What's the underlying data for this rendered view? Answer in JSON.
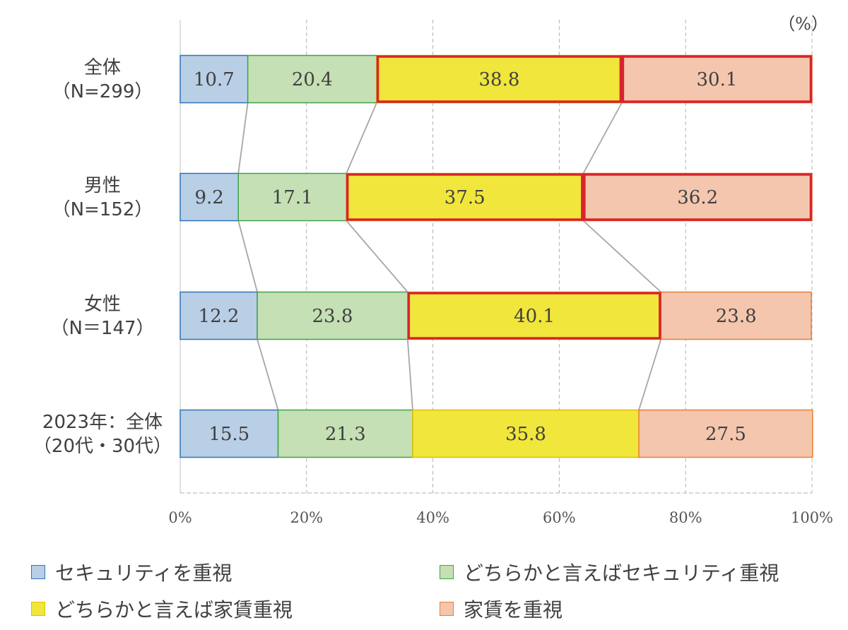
{
  "unit_label": "（%）",
  "legend": [
    {
      "label": "セキュリティを重視",
      "color": "#b9cfe6",
      "border": "#2e75b6"
    },
    {
      "label": "どちらかと言えばセキュリティ重視",
      "color": "#c5e0b4",
      "border": "#3fa34d"
    },
    {
      "label": "どちらかと言えば家賃重視",
      "color": "#f0e63c",
      "border": "#e0c000"
    },
    {
      "label": "家賃を重視",
      "color": "#f4c6ae",
      "border": "#ed7d31"
    }
  ],
  "chart_data": {
    "type": "bar",
    "orientation": "horizontal",
    "stacked": true,
    "percent": true,
    "categories": [
      [
        "全体",
        "（N=299）"
      ],
      [
        "男性",
        "（N=152）"
      ],
      [
        "女性",
        "（N＝147）"
      ],
      [
        "2023年：全体",
        "（20代・30代）"
      ]
    ],
    "series": [
      {
        "name": "セキュリティを重視",
        "values": [
          10.7,
          9.2,
          12.2,
          15.5
        ],
        "color": "#b9cfe6",
        "border": "#2e75b6"
      },
      {
        "name": "どちらかと言えばセキュリティ重視",
        "values": [
          20.4,
          17.1,
          23.8,
          21.3
        ],
        "color": "#c5e0b4",
        "border": "#3fa34d"
      },
      {
        "name": "どちらかと言えば家賃重視",
        "values": [
          38.8,
          37.5,
          40.1,
          35.8
        ],
        "color": "#f0e63c",
        "border": "#e0c000"
      },
      {
        "name": "家賃を重視",
        "values": [
          30.1,
          36.2,
          23.8,
          27.5
        ],
        "color": "#f4c6ae",
        "border": "#ed7d31"
      }
    ],
    "data_labels": [
      [
        "10.7",
        "9.2",
        "12.2",
        "15.5"
      ],
      [
        "20.4",
        "17.1",
        "23.8",
        "21.3"
      ],
      [
        "38.8",
        "37.5",
        "40.1",
        "35.8"
      ],
      [
        "30.1",
        "36.2",
        "23.8",
        "27.5"
      ]
    ],
    "highlighted": [
      {
        "category": 0,
        "series": 2
      },
      {
        "category": 0,
        "series": 3
      },
      {
        "category": 1,
        "series": 2
      },
      {
        "category": 1,
        "series": 3
      },
      {
        "category": 2,
        "series": 2
      }
    ],
    "highlight_color": "#d9242b",
    "x_ticks": [
      "0%",
      "20%",
      "40%",
      "60%",
      "80%",
      "100%"
    ],
    "xlim": [
      0,
      100
    ],
    "grid": true,
    "series_lines": true,
    "legend_position": "bottom"
  }
}
